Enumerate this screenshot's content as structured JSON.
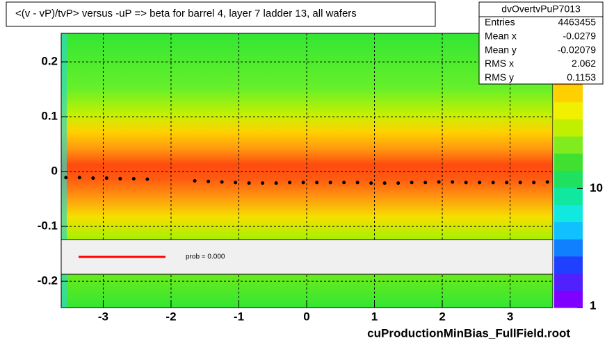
{
  "chart_data": {
    "type": "heatmap",
    "title": "<(v - vP)/tvP> versus  -uP => beta for barrel 4, layer 7 ladder 13, all wafers",
    "xlim": [
      -3.62,
      3.63
    ],
    "xticks": [
      -3,
      -2,
      -1,
      0,
      1,
      2,
      3
    ],
    "ylim": [
      -0.248,
      0.252
    ],
    "yticks": [
      -0.2,
      -0.1,
      0,
      0.1,
      0.2
    ],
    "zlim": [
      1,
      200
    ],
    "zticks": [
      1,
      10
    ],
    "zlog": true,
    "grid": true,
    "profile": {
      "color": "#000000",
      "x": [
        -3.55,
        -3.35,
        -3.15,
        -2.95,
        -2.75,
        -2.55,
        -2.35,
        -1.65,
        -1.45,
        -1.25,
        -1.05,
        -0.85,
        -0.65,
        -0.45,
        -0.25,
        -0.05,
        0.15,
        0.35,
        0.55,
        0.75,
        0.95,
        1.15,
        1.35,
        1.55,
        1.75,
        1.95,
        2.15,
        2.35,
        2.55,
        2.75,
        2.95,
        3.15,
        3.35,
        3.55
      ],
      "values": [
        -0.011,
        -0.011,
        -0.012,
        -0.012,
        -0.013,
        -0.013,
        -0.014,
        -0.017,
        -0.018,
        -0.019,
        -0.02,
        -0.021,
        -0.021,
        -0.021,
        -0.02,
        -0.02,
        -0.02,
        -0.02,
        -0.02,
        -0.02,
        -0.021,
        -0.021,
        -0.021,
        -0.02,
        -0.02,
        -0.019,
        -0.019,
        -0.02,
        -0.02,
        -0.02,
        -0.02,
        -0.02,
        -0.02,
        -0.019
      ]
    },
    "fit_legend": {
      "color": "#ff0000",
      "label": "prob = 0.000"
    },
    "stats": {
      "title": "dvOvertvPuP7013",
      "rows": [
        [
          "Entries",
          "4463455"
        ],
        [
          "Mean x",
          "-0.0279"
        ],
        [
          "Mean y",
          "-0.02079"
        ],
        [
          "RMS x",
          "2.062"
        ],
        [
          "RMS y",
          "0.1153"
        ]
      ]
    },
    "footer": "cuProductionMinBias_FullField.root"
  }
}
